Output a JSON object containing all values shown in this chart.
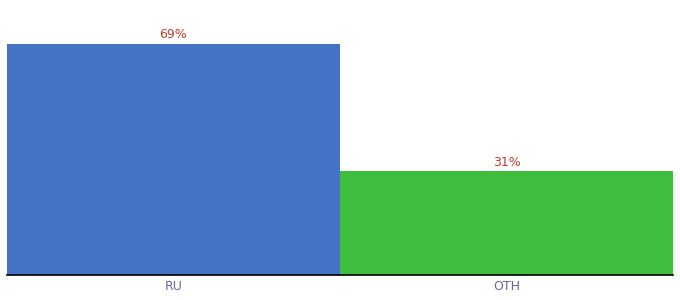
{
  "categories": [
    "RU",
    "OTH"
  ],
  "values": [
    69,
    31
  ],
  "bar_colors": [
    "#4472c4",
    "#3dbf3d"
  ],
  "label_color": "#c0392b",
  "label_format": [
    "69%",
    "31%"
  ],
  "ylim": [
    0,
    80
  ],
  "background_color": "#ffffff",
  "bar_width": 0.5,
  "label_fontsize": 9,
  "tick_fontsize": 9,
  "tick_color": "#6666aa",
  "bar_positions": [
    0.25,
    0.75
  ]
}
